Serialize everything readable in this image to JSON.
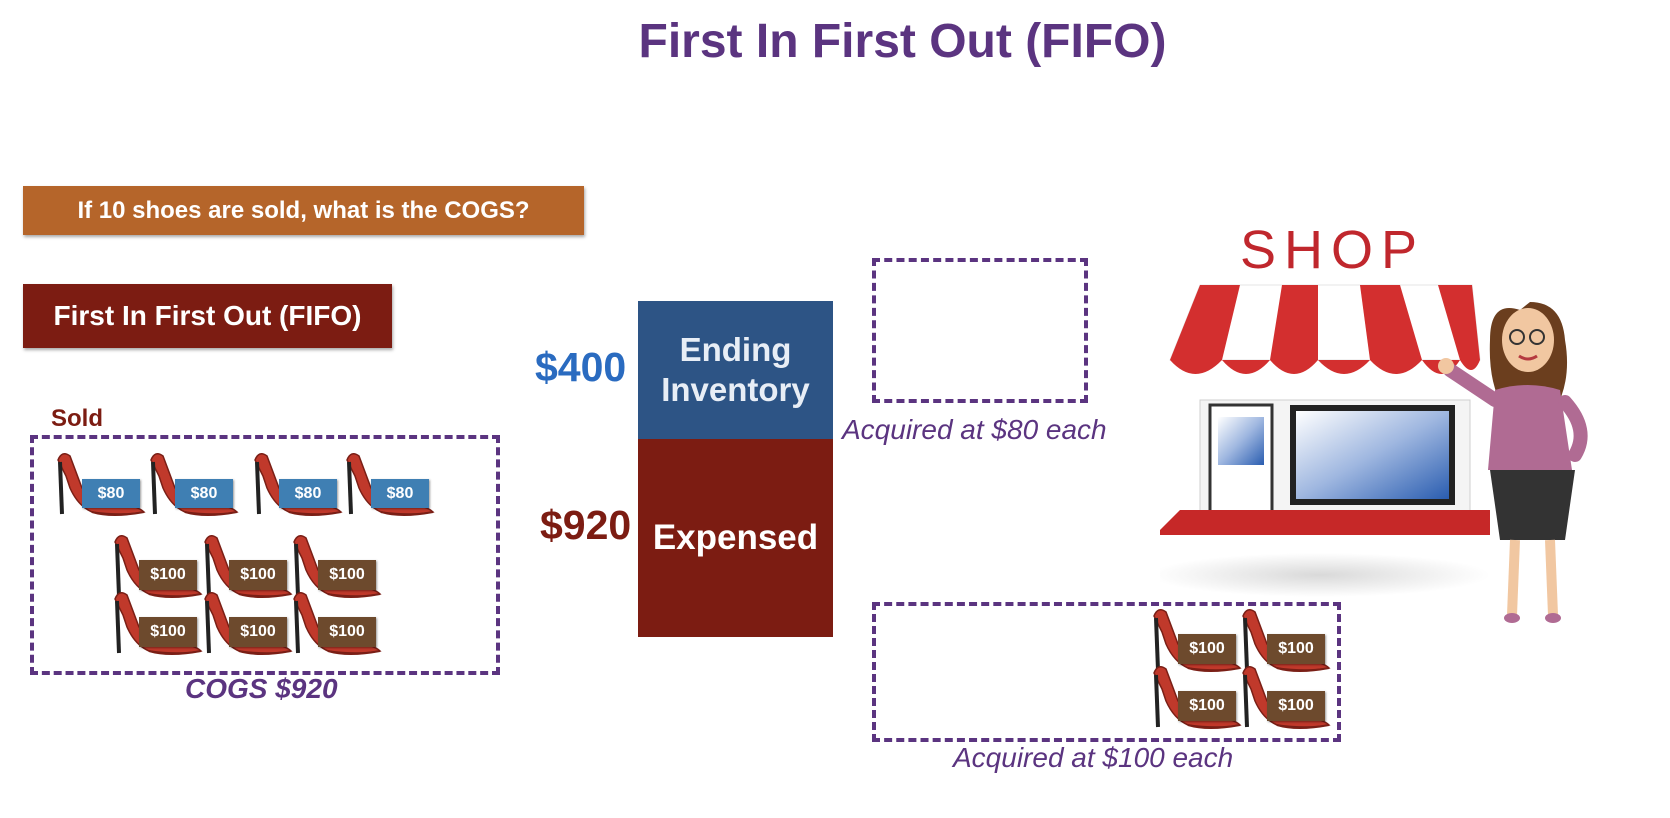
{
  "title": "First In First Out (FIFO)",
  "question": "If 10 shoes are sold, what is the COGS?",
  "method_label": "First In First Out (FIFO)",
  "sold": {
    "label": "Sold",
    "cogs_label": "COGS $920",
    "price_tags_80": [
      "$80",
      "$80",
      "$80",
      "$80"
    ],
    "price_tags_100": [
      "$100",
      "$100",
      "$100",
      "$100",
      "$100",
      "$100"
    ]
  },
  "stack": {
    "ending_inventory": {
      "value": "$400",
      "label_line1": "Ending",
      "label_line2": "Inventory"
    },
    "expensed": {
      "value": "$920",
      "label": "Expensed"
    }
  },
  "remaining": {
    "acquired_80": "Acquired at $80 each",
    "acquired_100": "Acquired at $100 each",
    "price_tags_100": [
      "$100",
      "$100",
      "$100",
      "$100"
    ]
  },
  "shop": {
    "sign": "SHOP"
  },
  "colors": {
    "title": "#5b3480",
    "question_bg": "#b5652a",
    "method_bg": "#7c1c12",
    "ending_bar": "#2d5485",
    "expensed_bar": "#7c1c12",
    "ending_value": "#2a6bc0",
    "dashed_border": "#5b3480"
  }
}
